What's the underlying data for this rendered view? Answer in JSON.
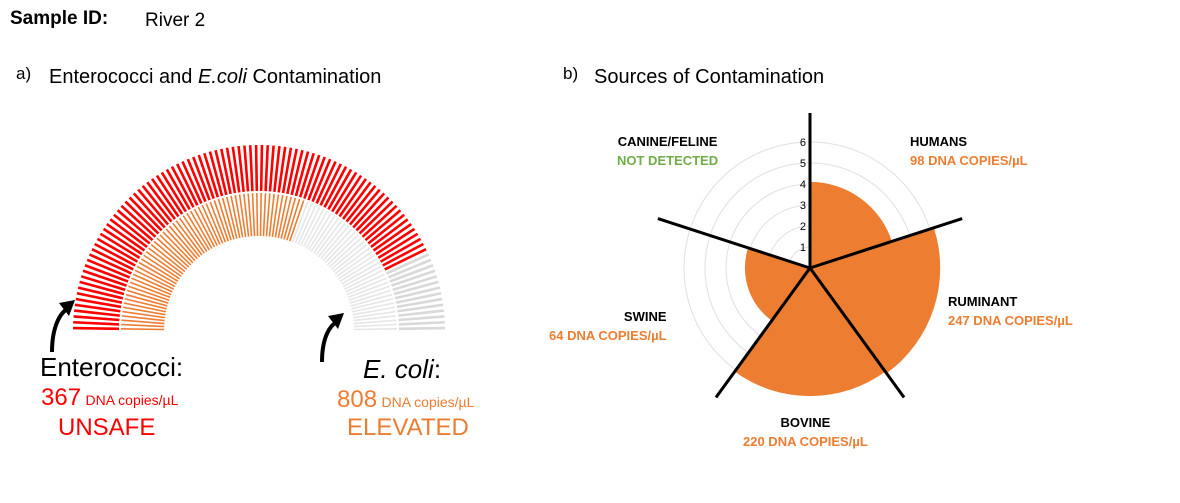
{
  "sample": {
    "label": "Sample ID:",
    "value": "River 2"
  },
  "panel_a": {
    "letter": "a)",
    "title_pre": "Enterococci and ",
    "title_em": "E.coli",
    "title_post": " Contamination"
  },
  "panel_b": {
    "letter": "b)",
    "title": "Sources of Contamination"
  },
  "chart_data": [
    {
      "type": "gauge",
      "series": [
        {
          "name": "Enterococci",
          "fill_fraction": 0.86,
          "color": "#ff0000",
          "track_color": "#d9d9d9"
        },
        {
          "name": "E. coli",
          "fill_fraction": 0.61,
          "color": "#ed7d31",
          "track_color": "#e6e6e6"
        }
      ],
      "readouts": [
        {
          "name": "Enterococci:",
          "value": "367",
          "unit": "DNA copies/µL",
          "status": "UNSAFE",
          "color": "#ff0000"
        },
        {
          "name": "E. coli",
          "suffix": ":",
          "value": "808",
          "unit": "DNA copies/µL",
          "status": "ELEVATED",
          "color": "#ed7d31"
        }
      ]
    },
    {
      "type": "polar-area",
      "radial_ticks": [
        "1",
        "2",
        "3",
        "4",
        "5",
        "6"
      ],
      "rlim": [
        0,
        6
      ],
      "fill_color": "#ed7d31",
      "categories": [
        {
          "name": "HUMANS",
          "label": "98 DNA COPIES/µL",
          "value": 4.1,
          "label_color": "#ed7d31"
        },
        {
          "name": "RUMINANT",
          "label": "247 DNA COPIES/µL",
          "value": 6.2,
          "label_color": "#ed7d31"
        },
        {
          "name": "BOVINE",
          "label": "220 DNA COPIES/µL",
          "value": 6.1,
          "label_color": "#ed7d31"
        },
        {
          "name": "SWINE",
          "label": "64 DNA COPIES/µL",
          "value": 3.1,
          "label_color": "#ed7d31"
        },
        {
          "name": "CANINE/FELINE",
          "label": "NOT DETECTED",
          "value": 0,
          "label_color": "#70ad47"
        }
      ]
    }
  ]
}
